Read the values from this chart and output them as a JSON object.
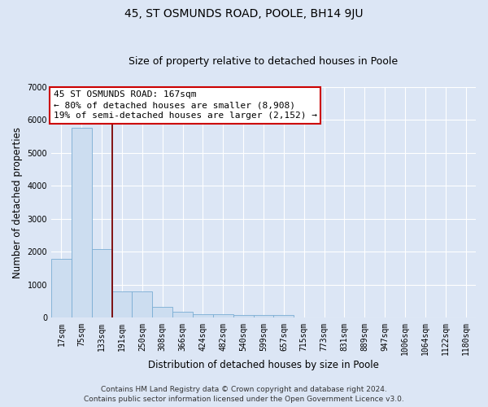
{
  "title": "45, ST OSMUNDS ROAD, POOLE, BH14 9JU",
  "subtitle": "Size of property relative to detached houses in Poole",
  "xlabel": "Distribution of detached houses by size in Poole",
  "ylabel": "Number of detached properties",
  "bar_color": "#ccddf0",
  "bar_edge_color": "#7aadd4",
  "background_color": "#dce6f5",
  "fig_background_color": "#dce6f5",
  "grid_color": "#ffffff",
  "vline_color": "#7b0000",
  "vline_x": 2.5,
  "categories": [
    "17sqm",
    "75sqm",
    "133sqm",
    "191sqm",
    "250sqm",
    "308sqm",
    "366sqm",
    "424sqm",
    "482sqm",
    "540sqm",
    "599sqm",
    "657sqm",
    "715sqm",
    "773sqm",
    "831sqm",
    "889sqm",
    "947sqm",
    "1006sqm",
    "1064sqm",
    "1122sqm",
    "1180sqm"
  ],
  "values": [
    1780,
    5770,
    2080,
    800,
    790,
    340,
    195,
    110,
    100,
    95,
    75,
    95,
    0,
    0,
    0,
    0,
    0,
    0,
    0,
    0,
    0
  ],
  "ylim": [
    0,
    7000
  ],
  "yticks": [
    0,
    1000,
    2000,
    3000,
    4000,
    5000,
    6000,
    7000
  ],
  "annotation_text": "45 ST OSMUNDS ROAD: 167sqm\n← 80% of detached houses are smaller (8,908)\n19% of semi-detached houses are larger (2,152) →",
  "footer_line1": "Contains HM Land Registry data © Crown copyright and database right 2024.",
  "footer_line2": "Contains public sector information licensed under the Open Government Licence v3.0.",
  "title_fontsize": 10,
  "subtitle_fontsize": 9,
  "axis_label_fontsize": 8.5,
  "tick_fontsize": 7,
  "annotation_fontsize": 8,
  "footer_fontsize": 6.5
}
